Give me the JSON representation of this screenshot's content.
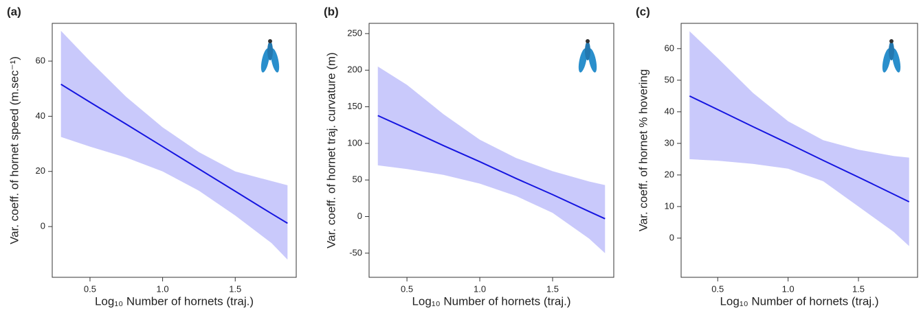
{
  "chart_data": [
    {
      "type": "line",
      "panel_label": "(a)",
      "ylabel": "Var. coeff. of  hornet speed (m.sec⁻¹)",
      "xlabel": "Log₁₀ Number of hornets (traj.)",
      "x": [
        0.3,
        0.5,
        0.75,
        1.0,
        1.25,
        1.5,
        1.75,
        1.86
      ],
      "line": {
        "color": "#1515e0",
        "values": [
          51.6,
          45.1,
          37.1,
          29.0,
          20.9,
          12.8,
          4.7,
          1.2
        ]
      },
      "band": {
        "color": "#c9c9fb",
        "upper": [
          71,
          60,
          47,
          36,
          27,
          20,
          16.5,
          15
        ],
        "lower": [
          32.5,
          29,
          25,
          20,
          13,
          4,
          -6,
          -12
        ]
      },
      "xlim": [
        0.24,
        1.92
      ],
      "xticks": [
        0.5,
        {
          "value": 1,
          "label": "1.0"
        },
        1.5
      ],
      "ylim": [
        -18.4,
        73.7
      ],
      "yticks": [
        0,
        20,
        40,
        60
      ]
    },
    {
      "type": "line",
      "panel_label": "(b)",
      "ylabel": "Var. coeff. of  hornet traj. curvature (m)",
      "xlabel": "Log₁₀ Number of hornets (traj.)",
      "x": [
        0.3,
        0.5,
        0.75,
        1.0,
        1.25,
        1.5,
        1.75,
        1.86
      ],
      "line": {
        "color": "#1515e0",
        "values": [
          138,
          120,
          97,
          75,
          52,
          30,
          7,
          -3
        ]
      },
      "band": {
        "color": "#c9c9fb",
        "upper": [
          205,
          180,
          140,
          105,
          80,
          62,
          48,
          43
        ],
        "lower": [
          70,
          65,
          57,
          45,
          28,
          5,
          -30,
          -50
        ]
      },
      "xlim": [
        0.24,
        1.92
      ],
      "xticks": [
        0.5,
        {
          "value": 1,
          "label": "1.0"
        },
        1.5
      ],
      "ylim": [
        -83,
        264
      ],
      "yticks": [
        -50,
        0,
        50,
        100,
        150,
        200,
        250
      ]
    },
    {
      "type": "line",
      "panel_label": "(c)",
      "ylabel": "Var. coeff. of  hornet % hovering",
      "xlabel": "Log₁₀ Number of hornets (traj.)",
      "x": [
        0.3,
        0.5,
        0.75,
        1.0,
        1.25,
        1.5,
        1.75,
        1.86
      ],
      "line": {
        "color": "#1515e0",
        "values": [
          45,
          40.7,
          35.3,
          30,
          24.6,
          19.3,
          13.9,
          11.5
        ]
      },
      "band": {
        "color": "#c9c9fb",
        "upper": [
          65.5,
          57,
          46,
          37,
          31,
          28,
          26,
          25.5
        ],
        "lower": [
          25,
          24.5,
          23.5,
          22,
          18,
          10,
          2,
          -2.5
        ]
      },
      "xlim": [
        0.24,
        1.92
      ],
      "xticks": [
        0.5,
        {
          "value": 1,
          "label": "1.0"
        },
        1.5
      ],
      "ylim": [
        -12.4,
        68
      ],
      "yticks": [
        0,
        10,
        20,
        30,
        40,
        50,
        60
      ]
    }
  ]
}
